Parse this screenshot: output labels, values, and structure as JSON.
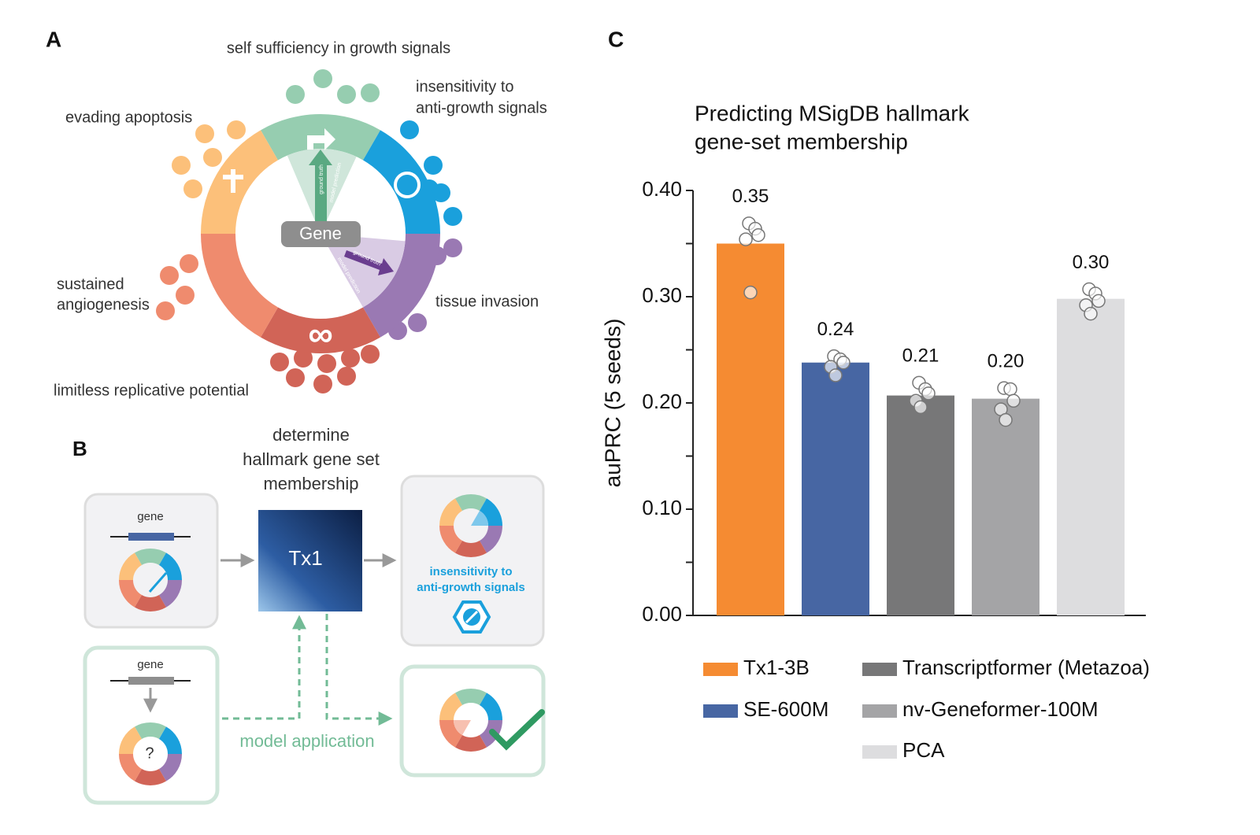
{
  "panel_a": {
    "letter": "A",
    "hallmarks": [
      {
        "lines": [
          "self sufficiency in growth signals"
        ]
      },
      {
        "lines": [
          "insensitivity to",
          "anti-growth signals"
        ]
      },
      {
        "lines": [
          "evading apoptosis"
        ]
      },
      {
        "lines": [
          "sustained",
          "angiogenesis"
        ]
      },
      {
        "lines": [
          "tissue invasion"
        ]
      },
      {
        "lines": [
          "limitless replicative potential"
        ]
      }
    ],
    "center": "Gene",
    "ground_truth": "ground truth",
    "model_prediction": "model prediction"
  },
  "panel_b": {
    "letter": "B",
    "heading": [
      "determine",
      "hallmark gene set",
      "membership"
    ],
    "input_gene": "gene",
    "model": "Tx1",
    "output": [
      "insensitivity to",
      "anti-growth signals"
    ],
    "query_gene": "gene",
    "unknown": "?",
    "application": "model application"
  },
  "chart_data": {
    "type": "bar",
    "letter": "C",
    "title": [
      "Predicting MSigDB hallmark",
      "gene-set membership"
    ],
    "ylabel": "auPRC (5 seeds)",
    "categories": [
      "Tx1-3B",
      "SE-600M",
      "Transcriptformer (Metazoa)",
      "nv-Geneformer-100M",
      "PCA"
    ],
    "values": [
      0.35,
      0.238,
      0.207,
      0.204,
      0.298
    ],
    "value_labels": [
      "0.35",
      "0.24",
      "0.21",
      "0.20",
      "0.30"
    ],
    "colors": [
      "#f58b32",
      "#4766a3",
      "#777778",
      "#a4a4a6",
      "#dddddf"
    ],
    "seeds": [
      [
        0.369,
        0.364,
        0.358,
        0.354,
        0.304
      ],
      [
        0.244,
        0.241,
        0.238,
        0.234,
        0.226
      ],
      [
        0.219,
        0.213,
        0.209,
        0.202,
        0.196
      ],
      [
        0.214,
        0.213,
        0.202,
        0.194,
        0.184
      ],
      [
        0.307,
        0.303,
        0.296,
        0.292,
        0.284
      ]
    ],
    "ylim": [
      0,
      0.4
    ],
    "yticks": [
      {
        "value": 0,
        "label": "0.00"
      },
      {
        "value": 0.1,
        "label": "0.10"
      },
      {
        "value": 0.2,
        "label": "0.20"
      },
      {
        "value": 0.3,
        "label": "0.30"
      },
      {
        "value": 0.4,
        "label": "0.40"
      }
    ],
    "minor_yticks": [
      0.05,
      0.15,
      0.25,
      0.35
    ]
  }
}
